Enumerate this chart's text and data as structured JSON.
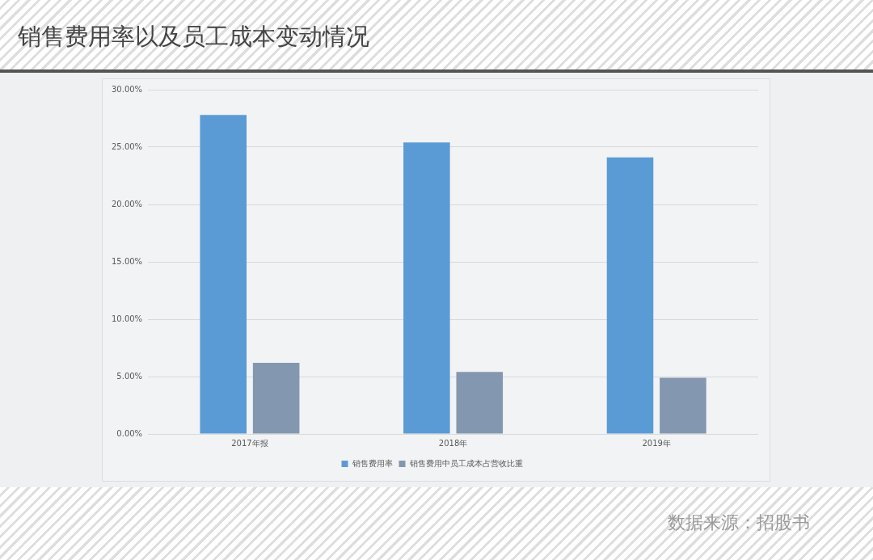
{
  "chart_data": {
    "type": "bar",
    "title": "销售费用率以及员工成本变动情况",
    "categories": [
      "2017年报",
      "2018年",
      "2019年"
    ],
    "series": [
      {
        "name": "销售费用率",
        "color": "#5b9bd5",
        "values": [
          27.8,
          25.4,
          24.1
        ]
      },
      {
        "name": "销售费用中员工成本占营收比重",
        "color": "#8497b0",
        "values": [
          6.2,
          5.4,
          4.9
        ]
      }
    ],
    "ylim": [
      0,
      30
    ],
    "yticks": [
      {
        "value": 0,
        "label": "0.00%"
      },
      {
        "value": 5,
        "label": "5.00%"
      },
      {
        "value": 10,
        "label": "10.00%"
      },
      {
        "value": 15,
        "label": "15.00%"
      },
      {
        "value": 20,
        "label": "20.00%"
      },
      {
        "value": 25,
        "label": "25.00%"
      },
      {
        "value": 30,
        "label": "30.00%"
      }
    ],
    "grid": "y",
    "legend": "bottom",
    "annotations": [
      "数据来源：招股书"
    ]
  }
}
